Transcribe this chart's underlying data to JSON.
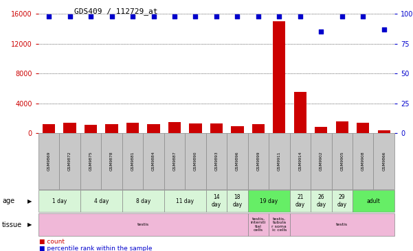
{
  "title": "GDS409 / 112729_at",
  "samples": [
    "GSM9869",
    "GSM9872",
    "GSM9875",
    "GSM9878",
    "GSM9881",
    "GSM9884",
    "GSM9887",
    "GSM9890",
    "GSM9893",
    "GSM9896",
    "GSM9899",
    "GSM9911",
    "GSM9914",
    "GSM9902",
    "GSM9905",
    "GSM9908",
    "GSM9866"
  ],
  "counts": [
    1200,
    1350,
    1100,
    1200,
    1400,
    1200,
    1500,
    1300,
    1300,
    900,
    1200,
    15000,
    5500,
    800,
    1600,
    1400,
    350
  ],
  "percentiles": [
    98,
    98,
    98,
    98,
    98,
    98,
    98,
    98,
    98,
    98,
    98,
    98,
    98,
    85,
    98,
    98,
    87
  ],
  "ylim_left": [
    0,
    16000
  ],
  "ylim_right": [
    0,
    100
  ],
  "yticks_left": [
    0,
    4000,
    8000,
    12000,
    16000
  ],
  "yticks_right": [
    0,
    25,
    50,
    75,
    100
  ],
  "age_groups": [
    {
      "label": "1 day",
      "start": 0,
      "end": 2,
      "light": true
    },
    {
      "label": "4 day",
      "start": 2,
      "end": 4,
      "light": true
    },
    {
      "label": "8 day",
      "start": 4,
      "end": 6,
      "light": true
    },
    {
      "label": "11 day",
      "start": 6,
      "end": 8,
      "light": true
    },
    {
      "label": "14\nday",
      "start": 8,
      "end": 9,
      "light": true
    },
    {
      "label": "18\nday",
      "start": 9,
      "end": 10,
      "light": true
    },
    {
      "label": "19 day",
      "start": 10,
      "end": 12,
      "light": false
    },
    {
      "label": "21\nday",
      "start": 12,
      "end": 13,
      "light": true
    },
    {
      "label": "26\nday",
      "start": 13,
      "end": 14,
      "light": true
    },
    {
      "label": "29\nday",
      "start": 14,
      "end": 15,
      "light": true
    },
    {
      "label": "adult",
      "start": 15,
      "end": 17,
      "light": false
    }
  ],
  "tissue_groups": [
    {
      "label": "testis",
      "start": 0,
      "end": 10,
      "special": false
    },
    {
      "label": "testis,\nintersti\ntial\ncells",
      "start": 10,
      "end": 11,
      "special": true
    },
    {
      "label": "testis,\ntubula\nr soma\nic cells",
      "start": 11,
      "end": 12,
      "special": true
    },
    {
      "label": "testis",
      "start": 12,
      "end": 17,
      "special": false
    }
  ],
  "age_light_color": "#d8f5d8",
  "age_bright_color": "#66ee66",
  "tissue_color": "#f0b8d8",
  "tissue_special_color": "#f0b8d8",
  "bar_color": "#cc0000",
  "dot_color": "#0000cc",
  "sample_box_color": "#c8c8c8",
  "left_label_color": "#cc0000",
  "right_label_color": "#0000cc",
  "bar_width": 0.6
}
